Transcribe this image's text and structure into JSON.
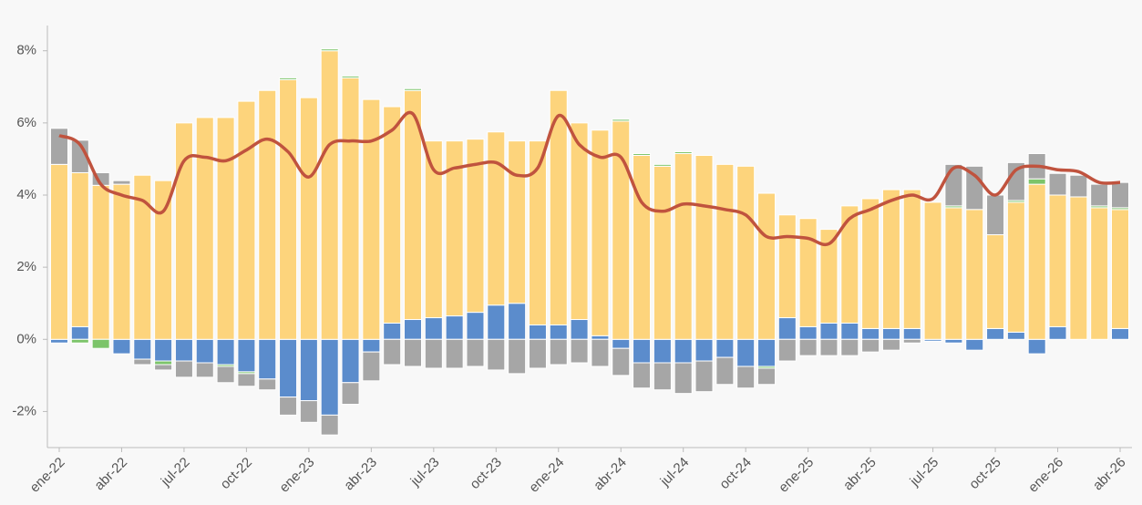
{
  "chart_data": {
    "type": "bar",
    "stacked": true,
    "categories": [
      "ene-22",
      null,
      null,
      "abr-22",
      null,
      null,
      "jul-22",
      null,
      null,
      "oct-22",
      null,
      null,
      "ene-23",
      null,
      null,
      "abr-23",
      null,
      null,
      "jul-23",
      null,
      null,
      "oct-23",
      null,
      null,
      "ene-24",
      null,
      null,
      "abr-24",
      null,
      null,
      "jul-24",
      null,
      null,
      "oct-24",
      null,
      null,
      "ene-25",
      null,
      null,
      "abr-25",
      null,
      null,
      "jul-25",
      null,
      null,
      "oct-25",
      null,
      null,
      "ene-26",
      null,
      null,
      "abr-26"
    ],
    "series": [
      {
        "color": "#5b8ccc",
        "values": [
          -0.1,
          0.35,
          0,
          -0.4,
          -0.55,
          -0.6,
          -0.6,
          -0.65,
          -0.7,
          -0.9,
          -1.1,
          -1.6,
          -1.7,
          -2.1,
          -1.2,
          -0.35,
          0.45,
          0.55,
          0.6,
          0.65,
          0.75,
          0.95,
          1.0,
          0.4,
          0.4,
          0.55,
          0.1,
          -0.25,
          -0.65,
          -0.65,
          -0.65,
          -0.6,
          -0.5,
          -0.75,
          -0.75,
          0.6,
          0.35,
          0.45,
          0.45,
          0.3,
          0.3,
          0.3,
          -0.05,
          -0.1,
          -0.3,
          0.3,
          0.2,
          -0.4,
          0.35,
          0,
          0,
          0.3
        ]
      },
      {
        "color": "#fdd47c",
        "values": [
          4.85,
          4.27,
          4.27,
          4.3,
          4.55,
          4.4,
          6.0,
          6.15,
          6.15,
          6.6,
          6.9,
          7.2,
          6.7,
          8.0,
          7.25,
          6.65,
          6.0,
          6.35,
          4.9,
          4.85,
          4.8,
          4.8,
          4.5,
          5.1,
          6.5,
          5.45,
          5.7,
          6.05,
          5.1,
          4.8,
          5.15,
          5.1,
          4.85,
          4.8,
          4.05,
          2.85,
          3.0,
          2.6,
          3.25,
          3.6,
          3.85,
          3.85,
          3.8,
          3.65,
          3.6,
          2.6,
          3.6,
          4.3,
          3.65,
          3.95,
          3.65,
          3.3
        ]
      },
      {
        "color": "#7cc46a",
        "values": [
          0,
          -0.1,
          -0.25,
          0,
          0,
          -0.1,
          0,
          0,
          -0.05,
          -0.05,
          0,
          0.05,
          0,
          0.05,
          0.05,
          0,
          0,
          0.05,
          0,
          0,
          0,
          0,
          0,
          0,
          0,
          0,
          0,
          0.05,
          0.05,
          0.05,
          0.05,
          0,
          0,
          0,
          -0.05,
          0,
          0,
          0,
          0,
          0,
          0,
          0,
          0,
          0.05,
          0,
          0,
          0.05,
          0.15,
          0,
          0,
          0.05,
          0.05
        ]
      },
      {
        "color": "#a6a6a6",
        "values": [
          1.0,
          0.9,
          0.35,
          0.1,
          -0.15,
          -0.15,
          -0.45,
          -0.4,
          -0.45,
          -0.35,
          -0.3,
          -0.5,
          -0.6,
          -0.55,
          -0.6,
          -0.8,
          -0.7,
          -0.75,
          -0.8,
          -0.8,
          -0.75,
          -0.85,
          -0.95,
          -0.8,
          -0.7,
          -0.65,
          -0.75,
          -0.75,
          -0.7,
          -0.75,
          -0.85,
          -0.85,
          -0.75,
          -0.6,
          -0.45,
          -0.6,
          -0.45,
          -0.45,
          -0.45,
          -0.35,
          -0.3,
          -0.1,
          0,
          1.15,
          1.2,
          1.1,
          1.05,
          0.7,
          0.6,
          0.6,
          0.6,
          0.7
        ]
      },
      {
        "type": "line",
        "color": "#c0533e",
        "values": [
          5.65,
          5.4,
          4.3,
          4.0,
          3.85,
          3.55,
          4.95,
          5.05,
          4.95,
          5.25,
          5.55,
          5.2,
          4.5,
          5.4,
          5.5,
          5.5,
          5.8,
          6.25,
          4.7,
          4.75,
          4.85,
          4.9,
          4.55,
          4.75,
          6.2,
          5.4,
          5.05,
          5.05,
          3.8,
          3.55,
          3.75,
          3.7,
          3.6,
          3.45,
          2.85,
          2.85,
          2.8,
          2.65,
          3.35,
          3.6,
          3.85,
          4.0,
          3.9,
          4.75,
          4.55,
          4.0,
          4.7,
          4.8,
          4.7,
          4.65,
          4.35,
          4.35
        ]
      }
    ],
    "ylim": [
      -3,
      8.7
    ],
    "yticks": [
      {
        "value": -2,
        "label": "-2%"
      },
      {
        "value": 0,
        "label": "0%"
      },
      {
        "value": 2,
        "label": "2%"
      },
      {
        "value": 4,
        "label": "4%"
      },
      {
        "value": 6,
        "label": "6%"
      },
      {
        "value": 8,
        "label": "8%"
      }
    ]
  }
}
